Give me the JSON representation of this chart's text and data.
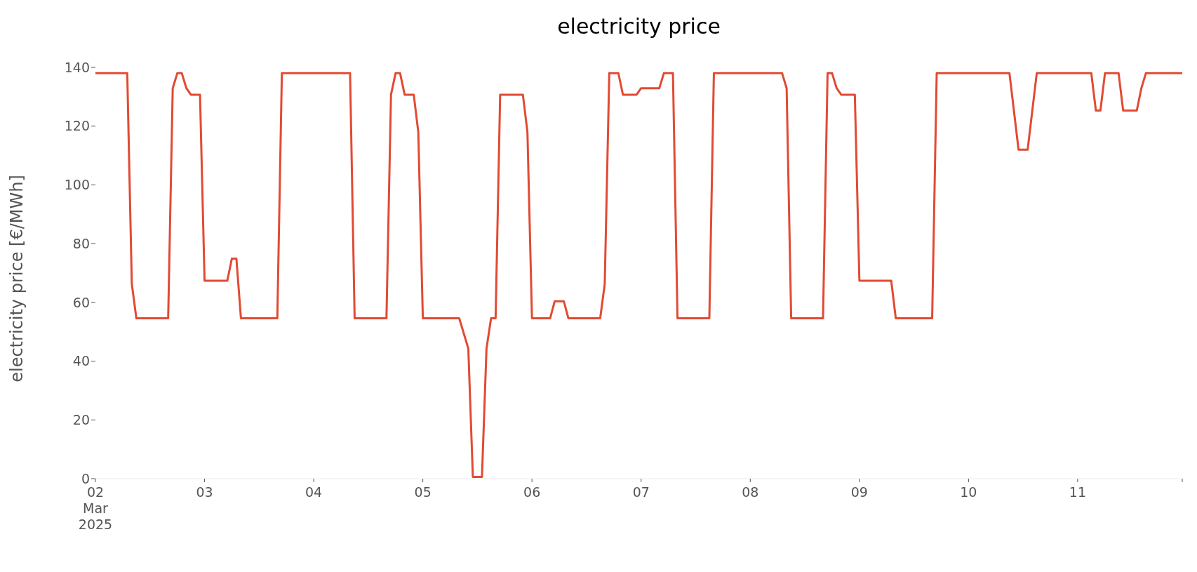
{
  "chart_data": {
    "type": "line",
    "title": "electricity price",
    "ylabel": "electricity price [€/MWh]",
    "x": [
      "2025-03-02T00:00",
      "2025-03-02T07:00",
      "2025-03-02T08:00",
      "2025-03-02T09:00",
      "2025-03-02T16:00",
      "2025-03-02T17:00",
      "2025-03-02T18:00",
      "2025-03-02T19:00",
      "2025-03-02T20:00",
      "2025-03-02T21:00",
      "2025-03-02T23:00",
      "2025-03-03T00:00",
      "2025-03-03T05:00",
      "2025-03-03T06:00",
      "2025-03-03T07:00",
      "2025-03-03T08:00",
      "2025-03-03T16:00",
      "2025-03-03T17:00",
      "2025-03-04T08:00",
      "2025-03-04T09:00",
      "2025-03-04T16:00",
      "2025-03-04T17:00",
      "2025-03-04T18:00",
      "2025-03-04T19:00",
      "2025-03-04T20:00",
      "2025-03-04T22:00",
      "2025-03-04T23:00",
      "2025-03-05T00:00",
      "2025-03-05T08:00",
      "2025-03-05T10:00",
      "2025-03-05T11:00",
      "2025-03-05T13:00",
      "2025-03-05T14:00",
      "2025-03-05T15:00",
      "2025-03-05T16:00",
      "2025-03-05T17:00",
      "2025-03-05T22:00",
      "2025-03-05T23:00",
      "2025-03-06T00:00",
      "2025-03-06T04:00",
      "2025-03-06T05:00",
      "2025-03-06T07:00",
      "2025-03-06T08:00",
      "2025-03-06T15:00",
      "2025-03-06T16:00",
      "2025-03-06T17:00",
      "2025-03-06T19:00",
      "2025-03-06T20:00",
      "2025-03-06T23:00",
      "2025-03-07T00:00",
      "2025-03-07T04:00",
      "2025-03-07T05:00",
      "2025-03-07T07:00",
      "2025-03-07T08:00",
      "2025-03-07T15:00",
      "2025-03-07T16:00",
      "2025-03-08T07:00",
      "2025-03-08T08:00",
      "2025-03-08T09:00",
      "2025-03-08T16:00",
      "2025-03-08T17:00",
      "2025-03-08T18:00",
      "2025-03-08T19:00",
      "2025-03-08T20:00",
      "2025-03-08T23:00",
      "2025-03-09T00:00",
      "2025-03-09T07:00",
      "2025-03-09T08:00",
      "2025-03-09T16:00",
      "2025-03-09T17:00",
      "2025-03-10T09:00",
      "2025-03-10T11:00",
      "2025-03-10T13:00",
      "2025-03-10T15:00",
      "2025-03-11T03:00",
      "2025-03-11T04:00",
      "2025-03-11T05:00",
      "2025-03-11T06:00",
      "2025-03-11T09:00",
      "2025-03-11T10:00",
      "2025-03-11T13:00",
      "2025-03-11T14:00",
      "2025-03-11T15:00",
      "2025-03-11T23:00"
    ],
    "series": [
      {
        "color": "#e24a33",
        "values": [
          138,
          138,
          66.3,
          54.6,
          54.6,
          132.9,
          138,
          138,
          132.9,
          130.7,
          130.7,
          67.4,
          67.4,
          74.9,
          74.9,
          54.6,
          54.6,
          138,
          138,
          54.6,
          54.6,
          130.7,
          138,
          138,
          130.7,
          130.7,
          118,
          54.6,
          54.6,
          44.3,
          0.6,
          0.6,
          44.3,
          54.6,
          54.6,
          130.7,
          130.7,
          118,
          54.6,
          54.6,
          60.4,
          60.4,
          54.6,
          54.6,
          66.3,
          138,
          138,
          130.7,
          130.7,
          132.9,
          132.9,
          138,
          138,
          54.6,
          54.6,
          138,
          138,
          132.9,
          54.6,
          54.6,
          138,
          138,
          132.9,
          130.7,
          130.7,
          67.4,
          67.4,
          54.6,
          54.6,
          138,
          138,
          112,
          112,
          138,
          138,
          125.3,
          125.3,
          138,
          138,
          125.3,
          125.3,
          132.9,
          138,
          138
        ]
      }
    ],
    "marker": "none",
    "line_style": "solid",
    "xlim": [
      "2025-03-02T00:00",
      "2025-03-11T23:00"
    ],
    "xticks": [
      {
        "value": "2025-03-02",
        "label": "02\nMar\n2025"
      },
      {
        "value": "2025-03-03",
        "label": "03"
      },
      {
        "value": "2025-03-04",
        "label": "04"
      },
      {
        "value": "2025-03-05",
        "label": "05"
      },
      {
        "value": "2025-03-06",
        "label": "06"
      },
      {
        "value": "2025-03-07",
        "label": "07"
      },
      {
        "value": "2025-03-08",
        "label": "08"
      },
      {
        "value": "2025-03-09",
        "label": "09"
      },
      {
        "value": "2025-03-10",
        "label": "10"
      },
      {
        "value": "2025-03-11",
        "label": "11"
      },
      {
        "value": "2025-03-11T23:00",
        "label": null
      }
    ],
    "ylim": [
      0,
      140
    ],
    "yticks": [
      0,
      20,
      40,
      60,
      80,
      100,
      120,
      140
    ]
  }
}
